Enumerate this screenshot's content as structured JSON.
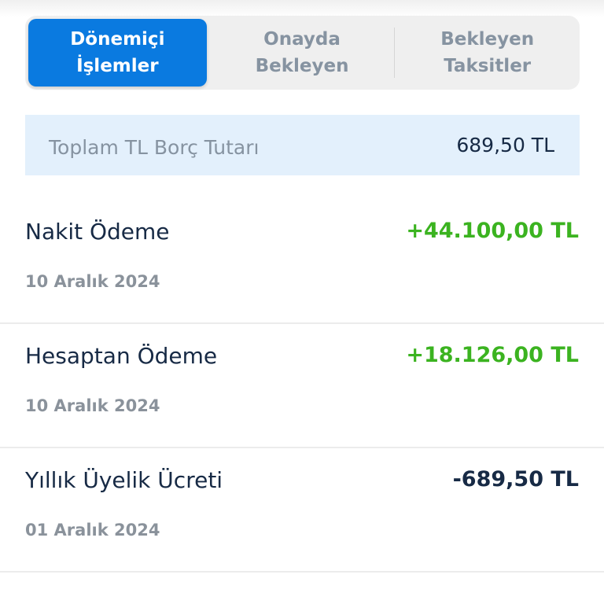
{
  "tabs": [
    {
      "line1": "Dönemiçi",
      "line2": "İşlemler",
      "active": true
    },
    {
      "line1": "Onayda",
      "line2": "Bekleyen",
      "active": false
    },
    {
      "line1": "Bekleyen",
      "line2": "Taksitler",
      "active": false
    }
  ],
  "total": {
    "label": "Toplam TL Borç Tutarı",
    "value": "689,50 TL"
  },
  "transactions": [
    {
      "title": "Nakit Ödeme",
      "amount": "+44.100,00 TL",
      "date": "10 Aralık 2024",
      "color": "#3bb320"
    },
    {
      "title": "Hesaptan Ödeme",
      "amount": "+18.126,00 TL",
      "date": "10 Aralık 2024",
      "color": "#3bb320"
    },
    {
      "title": "Yıllık Üyelik Ücreti",
      "amount": "-689,50 TL",
      "date": "01 Aralık 2024",
      "color": "#172a45"
    }
  ],
  "colors": {
    "accent": "#0a7ae0",
    "positive": "#3bb320",
    "text": "#172a45"
  }
}
